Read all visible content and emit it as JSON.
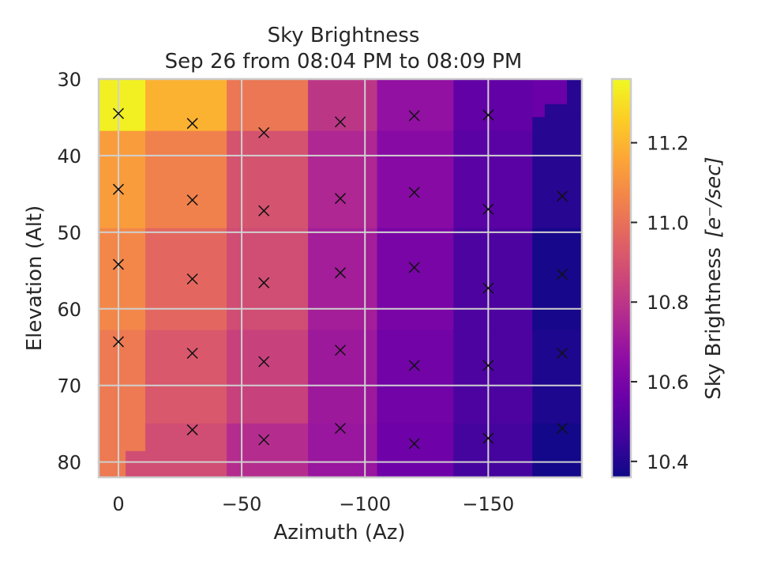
{
  "chart_data": {
    "type": "heatmap",
    "title": "Sky Brightness",
    "subtitle": "Sep 26 from 08:04 PM to 08:09 PM",
    "xlabel": "Azimuth (Az)",
    "ylabel": "Elevation (Alt)",
    "xlim": [
      8,
      -188
    ],
    "ylim": [
      82,
      30
    ],
    "y_inverted": true,
    "x_ticks": [
      0,
      -50,
      -100,
      -150
    ],
    "x_tick_labels": [
      "0",
      "−50",
      "−100",
      "−150"
    ],
    "y_ticks": [
      30,
      40,
      50,
      60,
      70,
      80
    ],
    "y_tick_labels": [
      "30",
      "40",
      "50",
      "60",
      "70",
      "80"
    ],
    "grid": true,
    "colormap": "plasma",
    "colorbar": {
      "label": "Sky Brightness",
      "unit_label": "[e⁻/sec]",
      "range": [
        10.36,
        11.36
      ],
      "ticks": [
        10.4,
        10.6,
        10.8,
        11.0,
        11.2
      ],
      "tick_labels": [
        "10.4",
        "10.6",
        "10.8",
        "11.0",
        "11.2"
      ]
    },
    "cells": [
      {
        "x0": 8,
        "x1": -11,
        "y0": 30,
        "y1": 36.8,
        "value": 11.34
      },
      {
        "x0": 8,
        "x1": -11,
        "y0": 36.8,
        "y1": 49.5,
        "value": 11.13
      },
      {
        "x0": 8,
        "x1": -11,
        "y0": 49.5,
        "y1": 62.8,
        "value": 11.07
      },
      {
        "x0": 8,
        "x1": -11,
        "y0": 62.8,
        "y1": 76.7,
        "value": 11.03
      },
      {
        "x0": 8,
        "x1": -11,
        "y0": 76.7,
        "y1": 78.6,
        "value": 11.03
      },
      {
        "x0": 8,
        "x1": -3,
        "y0": 78.6,
        "y1": 82,
        "value": 11.03
      },
      {
        "x0": -3,
        "x1": -11,
        "y0": 78.6,
        "y1": 82,
        "value": 10.88
      },
      {
        "x0": -11,
        "x1": -44,
        "y0": 30,
        "y1": 36.8,
        "value": 11.19
      },
      {
        "x0": -11,
        "x1": -44,
        "y0": 36.8,
        "y1": 49.5,
        "value": 11.05
      },
      {
        "x0": -11,
        "x1": -44,
        "y0": 49.5,
        "y1": 62.8,
        "value": 10.97
      },
      {
        "x0": -11,
        "x1": -44,
        "y0": 62.8,
        "y1": 75.0,
        "value": 10.92
      },
      {
        "x0": -11,
        "x1": -44,
        "y0": 75.0,
        "y1": 82,
        "value": 10.88
      },
      {
        "x0": -44,
        "x1": -77,
        "y0": 30,
        "y1": 36.8,
        "value": 11.02
      },
      {
        "x0": -44,
        "x1": -77,
        "y0": 36.8,
        "y1": 49.5,
        "value": 10.9
      },
      {
        "x0": -44,
        "x1": -77,
        "y0": 49.5,
        "y1": 62.8,
        "value": 10.88
      },
      {
        "x0": -44,
        "x1": -77,
        "y0": 62.8,
        "y1": 75.0,
        "value": 10.84
      },
      {
        "x0": -44,
        "x1": -77,
        "y0": 75.0,
        "y1": 82,
        "value": 10.77
      },
      {
        "x0": -77,
        "x1": -105,
        "y0": 30,
        "y1": 36.8,
        "value": 10.8
      },
      {
        "x0": -77,
        "x1": -105,
        "y0": 36.8,
        "y1": 49.5,
        "value": 10.75
      },
      {
        "x0": -77,
        "x1": -105,
        "y0": 49.5,
        "y1": 62.8,
        "value": 10.72
      },
      {
        "x0": -77,
        "x1": -105,
        "y0": 62.8,
        "y1": 75.0,
        "value": 10.7
      },
      {
        "x0": -77,
        "x1": -105,
        "y0": 75.0,
        "y1": 82,
        "value": 10.69
      },
      {
        "x0": -105,
        "x1": -136,
        "y0": 30,
        "y1": 36.8,
        "value": 10.67
      },
      {
        "x0": -105,
        "x1": -136,
        "y0": 36.8,
        "y1": 49.5,
        "value": 10.64
      },
      {
        "x0": -105,
        "x1": -136,
        "y0": 49.5,
        "y1": 62.8,
        "value": 10.6
      },
      {
        "x0": -105,
        "x1": -136,
        "y0": 62.8,
        "y1": 75.0,
        "value": 10.58
      },
      {
        "x0": -105,
        "x1": -136,
        "y0": 75.0,
        "y1": 82,
        "value": 10.57
      },
      {
        "x0": -136,
        "x1": -168,
        "y0": 30,
        "y1": 36.8,
        "value": 10.54
      },
      {
        "x0": -136,
        "x1": -168,
        "y0": 36.8,
        "y1": 49.5,
        "value": 10.52
      },
      {
        "x0": -136,
        "x1": -168,
        "y0": 49.5,
        "y1": 62.8,
        "value": 10.49
      },
      {
        "x0": -136,
        "x1": -168,
        "y0": 62.8,
        "y1": 75.0,
        "value": 10.49
      },
      {
        "x0": -136,
        "x1": -168,
        "y0": 75.0,
        "y1": 82,
        "value": 10.47
      },
      {
        "x0": -168,
        "x1": -182,
        "y0": 30,
        "y1": 33.3,
        "value": 10.56
      },
      {
        "x0": -182,
        "x1": -188,
        "y0": 30,
        "y1": 33.3,
        "value": 10.41
      },
      {
        "x0": -168,
        "x1": -173,
        "y0": 33.3,
        "y1": 35.0,
        "value": 10.56
      },
      {
        "x0": -173,
        "x1": -188,
        "y0": 33.3,
        "y1": 35.0,
        "value": 10.41
      },
      {
        "x0": -168,
        "x1": -188,
        "y0": 35.0,
        "y1": 49.5,
        "value": 10.41
      },
      {
        "x0": -168,
        "x1": -188,
        "y0": 49.5,
        "y1": 62.8,
        "value": 10.38
      },
      {
        "x0": -168,
        "x1": -188,
        "y0": 62.8,
        "y1": 75.0,
        "value": 10.39
      },
      {
        "x0": -168,
        "x1": -188,
        "y0": 75.0,
        "y1": 82,
        "value": 10.37
      }
    ],
    "sample_points": [
      {
        "az": 0,
        "alt": 34.5
      },
      {
        "az": -30,
        "alt": 35.8
      },
      {
        "az": -59,
        "alt": 37.0
      },
      {
        "az": -90,
        "alt": 35.6
      },
      {
        "az": -120,
        "alt": 34.8
      },
      {
        "az": -150,
        "alt": 34.7
      },
      {
        "az": 0,
        "alt": 44.4
      },
      {
        "az": -30,
        "alt": 45.8
      },
      {
        "az": -59,
        "alt": 47.2
      },
      {
        "az": -90,
        "alt": 45.6
      },
      {
        "az": -120,
        "alt": 44.8
      },
      {
        "az": -150,
        "alt": 47.0
      },
      {
        "az": -180,
        "alt": 45.3
      },
      {
        "az": 0,
        "alt": 54.2
      },
      {
        "az": -30,
        "alt": 56.1
      },
      {
        "az": -59,
        "alt": 56.6
      },
      {
        "az": -90,
        "alt": 55.3
      },
      {
        "az": -120,
        "alt": 54.6
      },
      {
        "az": -150,
        "alt": 57.3
      },
      {
        "az": -180,
        "alt": 55.5
      },
      {
        "az": 0,
        "alt": 64.3
      },
      {
        "az": -30,
        "alt": 65.8
      },
      {
        "az": -59,
        "alt": 66.9
      },
      {
        "az": -90,
        "alt": 65.4
      },
      {
        "az": -120,
        "alt": 67.4
      },
      {
        "az": -150,
        "alt": 67.4
      },
      {
        "az": -180,
        "alt": 65.8
      },
      {
        "az": -30,
        "alt": 75.8
      },
      {
        "az": -59,
        "alt": 77.1
      },
      {
        "az": -90,
        "alt": 75.6
      },
      {
        "az": -120,
        "alt": 77.6
      },
      {
        "az": -150,
        "alt": 76.9
      },
      {
        "az": -180,
        "alt": 75.6
      }
    ]
  }
}
